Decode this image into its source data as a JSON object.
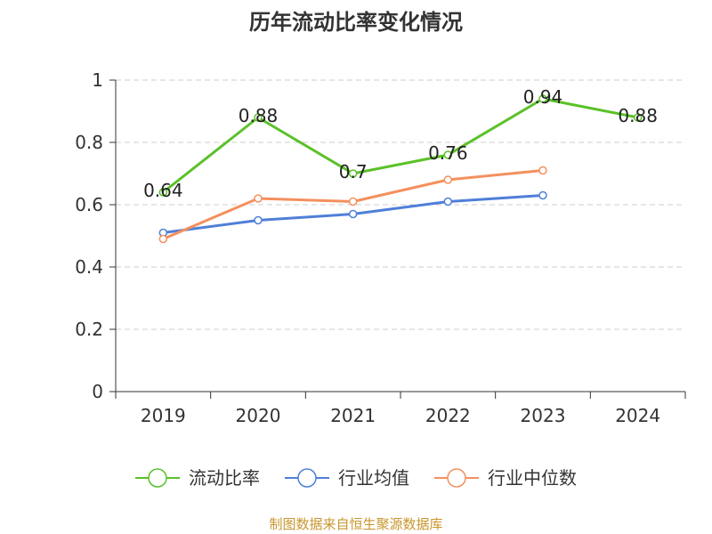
{
  "chart_data": {
    "type": "line",
    "title": "历年流动比率变化情况",
    "categories": [
      "2019",
      "2020",
      "2021",
      "2022",
      "2023",
      "2024"
    ],
    "ylim": [
      0,
      1
    ],
    "yticks": [
      "0",
      "0.2",
      "0.4",
      "0.6",
      "0.8",
      "1"
    ],
    "grid": true,
    "legend_position": "bottom",
    "series": [
      {
        "name": "流动比率",
        "color": "#5bc129",
        "values": [
          0.64,
          0.88,
          0.7,
          0.76,
          0.94,
          0.88
        ],
        "labels": [
          "0.64",
          "0.88",
          "0.7",
          "0.76",
          "0.94",
          "0.88"
        ]
      },
      {
        "name": "行业均值",
        "color": "#4f7fd8",
        "values": [
          0.51,
          0.55,
          0.57,
          0.61,
          0.63,
          null
        ]
      },
      {
        "name": "行业中位数",
        "color": "#f4905e",
        "values": [
          0.49,
          0.62,
          0.61,
          0.68,
          0.71,
          null
        ]
      }
    ],
    "source": "制图数据来自恒生聚源数据库"
  }
}
